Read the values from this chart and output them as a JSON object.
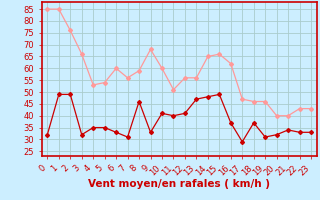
{
  "hours": [
    0,
    1,
    2,
    3,
    4,
    5,
    6,
    7,
    8,
    9,
    10,
    11,
    12,
    13,
    14,
    15,
    16,
    17,
    18,
    19,
    20,
    21,
    22,
    23
  ],
  "moyen": [
    32,
    49,
    49,
    32,
    35,
    35,
    33,
    31,
    46,
    33,
    41,
    40,
    41,
    47,
    48,
    49,
    37,
    29,
    37,
    31,
    32,
    34,
    33,
    33
  ],
  "rafales": [
    85,
    85,
    76,
    66,
    53,
    54,
    60,
    56,
    59,
    68,
    60,
    51,
    56,
    56,
    65,
    66,
    62,
    47,
    46,
    46,
    40,
    40,
    43,
    43
  ],
  "bg_color": "#cceeff",
  "grid_color": "#aacccc",
  "moyen_color": "#cc0000",
  "rafales_color": "#ff9999",
  "xlabel": "Vent moyen/en rafales ( km/h )",
  "xlabel_color": "#cc0000",
  "yticks": [
    25,
    30,
    35,
    40,
    45,
    50,
    55,
    60,
    65,
    70,
    75,
    80,
    85
  ],
  "ylim": [
    23,
    88
  ],
  "xlim": [
    -0.5,
    23.5
  ],
  "tick_fontsize": 6,
  "xlabel_fontsize": 7.5
}
